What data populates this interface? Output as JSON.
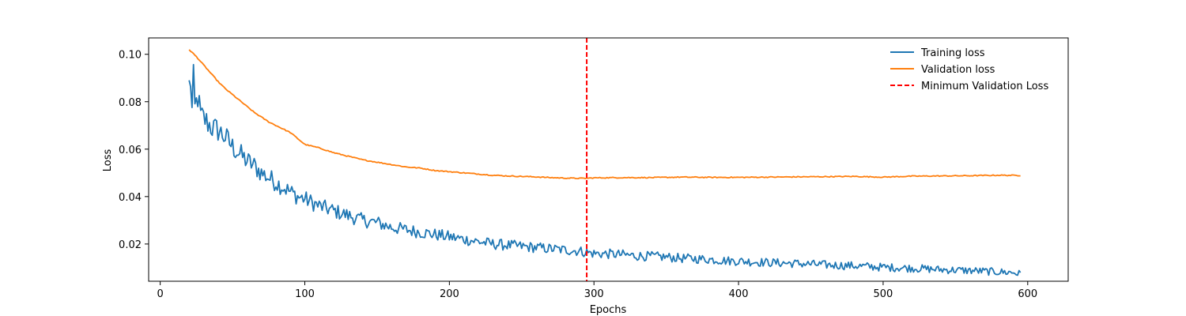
{
  "chart_data": {
    "type": "line",
    "title": "",
    "xlabel": "Epochs",
    "ylabel": "Loss",
    "xlim": [
      -8,
      628
    ],
    "ylim": [
      0.0043,
      0.1069
    ],
    "x_ticks": [
      0,
      100,
      200,
      300,
      400,
      500,
      600
    ],
    "x_tick_labels": [
      "0",
      "100",
      "200",
      "300",
      "400",
      "500",
      "600"
    ],
    "y_ticks": [
      0.02,
      0.04,
      0.06,
      0.08,
      0.1
    ],
    "y_tick_labels": [
      "0.02",
      "0.04",
      "0.06",
      "0.08",
      "0.10"
    ],
    "grid": false,
    "legend_position": "upper right",
    "x_start": 20,
    "x_end": 595,
    "series": [
      {
        "name": "Training loss",
        "color": "#1f77b4",
        "style": "solid",
        "x": [
          20,
          21,
          22,
          23,
          24,
          26,
          28,
          30,
          33,
          36,
          40,
          45,
          50,
          55,
          60,
          65,
          70,
          75,
          80,
          85,
          90,
          95,
          100,
          110,
          120,
          130,
          140,
          150,
          160,
          170,
          180,
          190,
          200,
          210,
          220,
          230,
          240,
          250,
          260,
          270,
          280,
          290,
          295,
          300,
          310,
          320,
          330,
          340,
          350,
          360,
          370,
          380,
          390,
          400,
          410,
          420,
          430,
          440,
          450,
          460,
          470,
          480,
          490,
          500,
          510,
          520,
          530,
          540,
          550,
          560,
          570,
          580,
          590,
          595
        ],
        "values": [
          0.087,
          0.089,
          0.076,
          0.089,
          0.077,
          0.082,
          0.074,
          0.073,
          0.071,
          0.069,
          0.068,
          0.065,
          0.061,
          0.058,
          0.055,
          0.053,
          0.05,
          0.048,
          0.046,
          0.044,
          0.042,
          0.04,
          0.039,
          0.036,
          0.034,
          0.032,
          0.03,
          0.029,
          0.027,
          0.026,
          0.025,
          0.024,
          0.023,
          0.022,
          0.021,
          0.02,
          0.0195,
          0.019,
          0.0185,
          0.018,
          0.0175,
          0.017,
          0.0165,
          0.016,
          0.0158,
          0.0155,
          0.015,
          0.0148,
          0.0145,
          0.014,
          0.0138,
          0.0135,
          0.013,
          0.0128,
          0.0125,
          0.0122,
          0.012,
          0.0118,
          0.0115,
          0.0112,
          0.011,
          0.0108,
          0.0105,
          0.0102,
          0.01,
          0.0098,
          0.0095,
          0.0092,
          0.009,
          0.0088,
          0.0085,
          0.0082,
          0.008,
          0.0073
        ]
      },
      {
        "name": "Validation loss",
        "color": "#ff7f0e",
        "style": "solid",
        "x": [
          20,
          25,
          30,
          35,
          40,
          45,
          50,
          55,
          60,
          65,
          70,
          75,
          80,
          85,
          90,
          95,
          100,
          110,
          120,
          130,
          140,
          150,
          160,
          170,
          180,
          190,
          200,
          210,
          220,
          230,
          240,
          250,
          260,
          270,
          280,
          290,
          295,
          300,
          320,
          340,
          360,
          380,
          400,
          420,
          440,
          460,
          480,
          500,
          520,
          540,
          560,
          580,
          595
        ],
        "values": [
          0.102,
          0.099,
          0.0955,
          0.092,
          0.0885,
          0.0855,
          0.083,
          0.0805,
          0.078,
          0.0755,
          0.0735,
          0.0715,
          0.07,
          0.0685,
          0.067,
          0.0645,
          0.062,
          0.0605,
          0.0585,
          0.057,
          0.0555,
          0.0545,
          0.0535,
          0.0525,
          0.052,
          0.051,
          0.0505,
          0.05,
          0.0495,
          0.049,
          0.0487,
          0.0485,
          0.0483,
          0.048,
          0.0478,
          0.0477,
          0.0477,
          0.0479,
          0.048,
          0.048,
          0.0482,
          0.0481,
          0.0481,
          0.0482,
          0.0483,
          0.0484,
          0.0485,
          0.0482,
          0.0486,
          0.0487,
          0.0488,
          0.049,
          0.0489
        ]
      }
    ],
    "vlines": [
      {
        "name": "Minimum Validation Loss",
        "x": 295,
        "color": "#ff0000",
        "style": "dashed"
      }
    ]
  }
}
